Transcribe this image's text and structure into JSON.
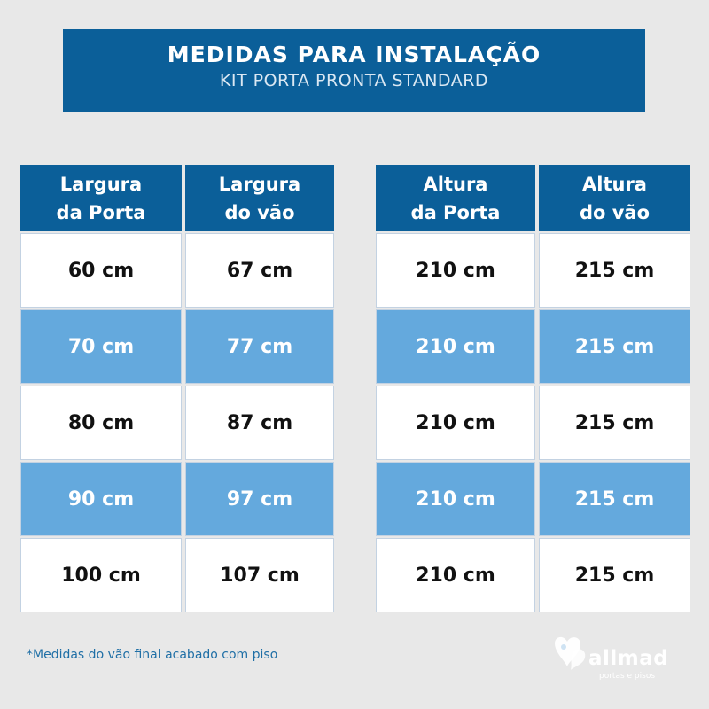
{
  "banner": {
    "title": "MEDIDAS PARA INSTALAÇÃO",
    "subtitle": "KIT PORTA PRONTA STANDARD"
  },
  "left_table": {
    "headers": [
      [
        "Largura",
        "da Porta"
      ],
      [
        "Largura",
        "do vão"
      ]
    ],
    "rows": [
      [
        "60 cm",
        "67 cm"
      ],
      [
        "70 cm",
        "77 cm"
      ],
      [
        "80 cm",
        "87 cm"
      ],
      [
        "90 cm",
        "97 cm"
      ],
      [
        "100 cm",
        "107 cm"
      ]
    ]
  },
  "right_table": {
    "headers": [
      [
        "Altura",
        "da Porta"
      ],
      [
        "Altura",
        "do vão"
      ]
    ],
    "rows": [
      [
        "210 cm",
        "215 cm"
      ],
      [
        "210 cm",
        "215 cm"
      ],
      [
        "210 cm",
        "215 cm"
      ],
      [
        "210 cm",
        "215 cm"
      ],
      [
        "210 cm",
        "215 cm"
      ]
    ]
  },
  "footnote": "*Medidas do vão final acabado com piso",
  "logo": {
    "name": "allmad",
    "tagline": "portas e pisos",
    "icon": "heart-hands-icon"
  },
  "colors": {
    "header_blue": "#0b5f99",
    "row_blue": "#64a9dd",
    "row_white": "#ffffff",
    "background": "#e8e8e8",
    "footnote_text": "#1f6fa6"
  }
}
